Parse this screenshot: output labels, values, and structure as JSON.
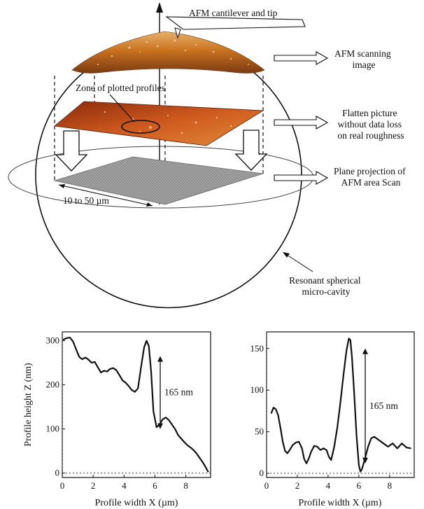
{
  "diagram": {
    "labels": {
      "cantilever": "AFM cantilever and tip",
      "scanning_image": [
        "AFM scanning",
        "image"
      ],
      "flatten": [
        "Flatten picture",
        "without data loss",
        "on real roughness"
      ],
      "projection": [
        "Plane projection of",
        "AFM area Scan"
      ],
      "zone": "Zone of plotted profiles",
      "scale": "10 to 50 µm",
      "cavity": [
        "Resonant spherical",
        "micro-cavity"
      ]
    },
    "colors": {
      "afm_surface": "#c9731f",
      "flatten_layer": "#c24a18",
      "projection_plane": "#9a9a9a"
    }
  },
  "chart_data": [
    {
      "type": "line",
      "title": "",
      "xlabel": "Profile width X (µm)",
      "ylabel": "Profile height Z (nm)",
      "xlim": [
        0,
        9.6
      ],
      "ylim": [
        -10,
        320
      ],
      "xticks": [
        0,
        2,
        4,
        6,
        8
      ],
      "yticks": [
        0,
        100,
        200,
        300
      ],
      "annotation": "165 nm",
      "series": [
        {
          "x": [
            0.05,
            0.3,
            0.5,
            0.7,
            0.9,
            1.1,
            1.3,
            1.5,
            1.7,
            1.9,
            2.1,
            2.3,
            2.5,
            2.7,
            2.9,
            3.1,
            3.3,
            3.5,
            3.7,
            3.9,
            4.1,
            4.3,
            4.5,
            4.7,
            4.9,
            5.1,
            5.3,
            5.45,
            5.6,
            5.75,
            5.9,
            6.1,
            6.3,
            6.5,
            6.7,
            6.9,
            7.1,
            7.3,
            7.5,
            7.7,
            7.9,
            8.1,
            8.3,
            8.5,
            8.7,
            8.9,
            9.1,
            9.3,
            9.45
          ],
          "y": [
            302,
            306,
            307,
            298,
            280,
            263,
            258,
            262,
            257,
            250,
            252,
            240,
            228,
            232,
            230,
            236,
            238,
            233,
            222,
            210,
            205,
            197,
            188,
            184,
            192,
            240,
            285,
            300,
            288,
            230,
            140,
            104,
            110,
            122,
            126,
            120,
            110,
            100,
            86,
            78,
            70,
            63,
            58,
            52,
            44,
            34,
            24,
            12,
            2
          ]
        }
      ]
    },
    {
      "type": "line",
      "title": "",
      "xlabel": "Profile width X (µm)",
      "ylabel": "",
      "xlim": [
        0,
        9.6
      ],
      "ylim": [
        -5,
        170
      ],
      "xticks": [
        0,
        2,
        4,
        6,
        8
      ],
      "yticks": [
        0,
        50,
        100,
        150
      ],
      "annotation": "165 nm",
      "series": [
        {
          "x": [
            0.3,
            0.45,
            0.6,
            0.75,
            0.9,
            1.05,
            1.2,
            1.35,
            1.5,
            1.7,
            1.9,
            2.1,
            2.3,
            2.45,
            2.6,
            2.75,
            2.9,
            3.1,
            3.3,
            3.5,
            3.7,
            3.9,
            4.05,
            4.2,
            4.4,
            4.6,
            4.8,
            5.0,
            5.2,
            5.35,
            5.45,
            5.55,
            5.7,
            5.85,
            6.0,
            6.1,
            6.2,
            6.4,
            6.6,
            6.8,
            7.0,
            7.3,
            7.6,
            7.9,
            8.2,
            8.5,
            8.8,
            9.1,
            9.4
          ],
          "y": [
            72,
            79,
            77,
            70,
            55,
            38,
            27,
            24,
            28,
            34,
            37,
            38,
            30,
            17,
            12,
            18,
            26,
            33,
            32,
            28,
            30,
            28,
            20,
            16,
            32,
            55,
            85,
            118,
            148,
            162,
            160,
            140,
            95,
            45,
            10,
            2,
            5,
            18,
            32,
            42,
            44,
            40,
            36,
            32,
            36,
            30,
            36,
            31,
            30
          ]
        }
      ]
    }
  ]
}
